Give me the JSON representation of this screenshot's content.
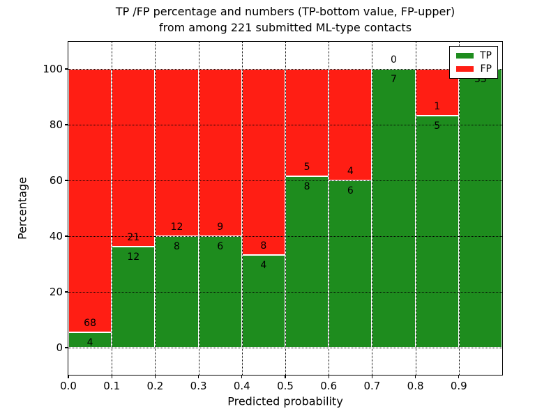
{
  "figure": {
    "title_line1": "TP /FP percentage and numbers (TP-bottom value, FP-upper)",
    "title_line2": "from among 221 submitted ML-type contacts"
  },
  "axes": {
    "xlabel": "Predicted probability",
    "ylabel": "Percentage",
    "ytick_labels": [
      "0",
      "20",
      "40",
      "60",
      "80",
      "100"
    ],
    "ytick_values": [
      0,
      20,
      40,
      60,
      80,
      100
    ],
    "xtick_labels": [
      "0.0",
      "0.1",
      "0.2",
      "0.3",
      "0.4",
      "0.5",
      "0.6",
      "0.7",
      "0.8",
      "0.9"
    ],
    "xtick_values": [
      0.0,
      0.1,
      0.2,
      0.3,
      0.4,
      0.5,
      0.6,
      0.7,
      0.8,
      0.9
    ]
  },
  "legend": {
    "items": [
      {
        "label": "TP",
        "color": "#1e8c1e"
      },
      {
        "label": "FP",
        "color": "#ff1e14"
      }
    ]
  },
  "colors": {
    "tp_green": "#1e8c1e",
    "fp_red": "#ff1e14",
    "grid": "#000000",
    "bar_edge": "#ffffff",
    "background": "#ffffff"
  },
  "chart_data": {
    "type": "bar",
    "stacked": true,
    "normalized": "each bin stacks to 100%",
    "title": "TP /FP percentage and numbers (TP-bottom value, FP-upper) from among 221 submitted ML-type contacts",
    "xlabel": "Predicted probability",
    "ylabel": "Percentage",
    "xlim": [
      0.0,
      1.0
    ],
    "ylim": [
      -10,
      110
    ],
    "grid": "dotted black, horizontal at 0/20/40/60/80/100 and vertical at each 0.1",
    "legend_position": "upper right",
    "total_contacts": 221,
    "bin_width": 0.1,
    "bins": [
      "0.0-0.1",
      "0.1-0.2",
      "0.2-0.3",
      "0.3-0.4",
      "0.4-0.5",
      "0.5-0.6",
      "0.6-0.7",
      "0.7-0.8",
      "0.8-0.9",
      "0.9-1.0"
    ],
    "series": [
      {
        "name": "TP",
        "color": "#1e8c1e",
        "counts": [
          4,
          12,
          8,
          6,
          4,
          8,
          6,
          7,
          5,
          33
        ],
        "percent": [
          5.6,
          36.4,
          40.0,
          40.0,
          33.3,
          61.5,
          60.0,
          100.0,
          83.3,
          100.0
        ]
      },
      {
        "name": "FP",
        "color": "#ff1e14",
        "counts": [
          68,
          21,
          12,
          9,
          8,
          5,
          4,
          0,
          1,
          0
        ],
        "percent": [
          94.4,
          63.6,
          60.0,
          60.0,
          66.7,
          38.5,
          40.0,
          0.0,
          16.7,
          0.0
        ]
      }
    ]
  }
}
